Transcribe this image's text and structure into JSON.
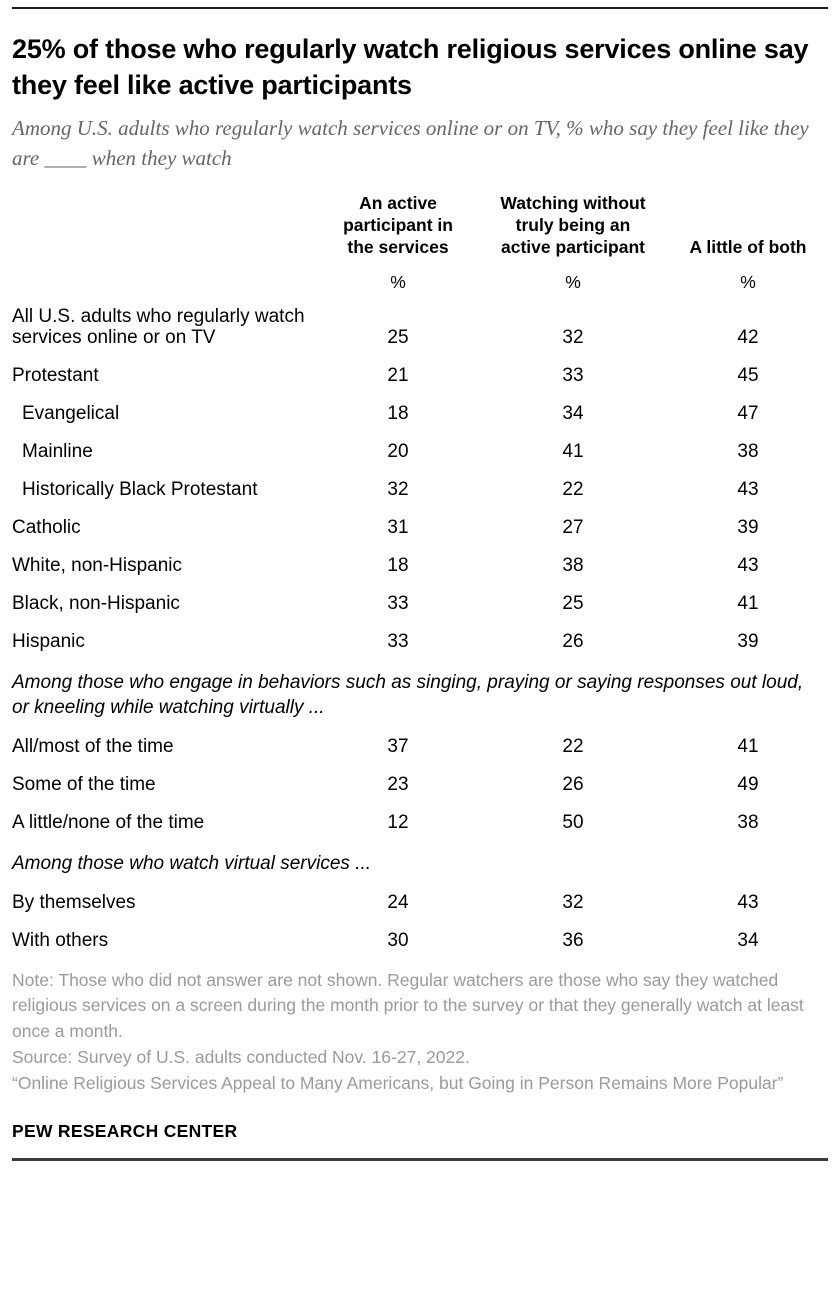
{
  "chart_data": {
    "type": "table",
    "title": "25% of those who regularly watch religious services online say they feel like active participants",
    "subtitle": "Among U.S. adults who regularly watch services online or on TV, % who say they feel like they are ____ when they watch",
    "columns": [
      "An active participant in the services",
      "Watching without truly being an active participant",
      "A little of both"
    ],
    "unit": "%",
    "rows": [
      {
        "type": "data",
        "label": "All U.S. adults who regularly watch services online or on TV",
        "values": [
          25,
          32,
          42
        ],
        "indent": false,
        "gap_before": false
      },
      {
        "type": "data",
        "label": "Protestant",
        "values": [
          21,
          33,
          45
        ],
        "indent": false,
        "gap_before": true
      },
      {
        "type": "data",
        "label": "Evangelical",
        "values": [
          18,
          34,
          47
        ],
        "indent": true,
        "gap_before": false
      },
      {
        "type": "data",
        "label": "Mainline",
        "values": [
          20,
          41,
          38
        ],
        "indent": true,
        "gap_before": false
      },
      {
        "type": "data",
        "label": "Historically Black Protestant",
        "values": [
          32,
          22,
          43
        ],
        "indent": true,
        "gap_before": false
      },
      {
        "type": "data",
        "label": "Catholic",
        "values": [
          31,
          27,
          39
        ],
        "indent": false,
        "gap_before": false
      },
      {
        "type": "data",
        "label": "White, non-Hispanic",
        "values": [
          18,
          38,
          43
        ],
        "indent": false,
        "gap_before": true
      },
      {
        "type": "data",
        "label": "Black, non-Hispanic",
        "values": [
          33,
          25,
          41
        ],
        "indent": false,
        "gap_before": false
      },
      {
        "type": "data",
        "label": "Hispanic",
        "values": [
          33,
          26,
          39
        ],
        "indent": false,
        "gap_before": false
      },
      {
        "type": "section",
        "label": "Among those who engage in behaviors such as singing, praying or saying responses out loud, or kneeling while watching virtually ..."
      },
      {
        "type": "data",
        "label": "All/most of the time",
        "values": [
          37,
          22,
          41
        ],
        "indent": false,
        "gap_before": false
      },
      {
        "type": "data",
        "label": "Some of the time",
        "values": [
          23,
          26,
          49
        ],
        "indent": false,
        "gap_before": false
      },
      {
        "type": "data",
        "label": "A little/none of the time",
        "values": [
          12,
          50,
          38
        ],
        "indent": false,
        "gap_before": false
      },
      {
        "type": "section",
        "label": "Among those who watch virtual services ..."
      },
      {
        "type": "data",
        "label": "By themselves",
        "values": [
          24,
          32,
          43
        ],
        "indent": false,
        "gap_before": false
      },
      {
        "type": "data",
        "label": "With others",
        "values": [
          30,
          36,
          34
        ],
        "indent": false,
        "gap_before": false
      }
    ]
  },
  "footer": {
    "note": "Note: Those who did not answer are not shown. Regular watchers are those who say they watched religious services on a screen during the month prior to the survey or that they generally watch at least once a month.",
    "source": "Source: Survey of U.S. adults conducted Nov. 16-27, 2022.",
    "quote": "“Online Religious Services Appeal to Many Americans, but Going in Person Remains More Popular”",
    "brand": "PEW RESEARCH CENTER"
  },
  "colors": {
    "title": "#000000",
    "subtitle": "#666666",
    "note": "#9a9a9a",
    "rule_top": "#1f1f1f",
    "rule_bottom": "#3c3c3c"
  }
}
